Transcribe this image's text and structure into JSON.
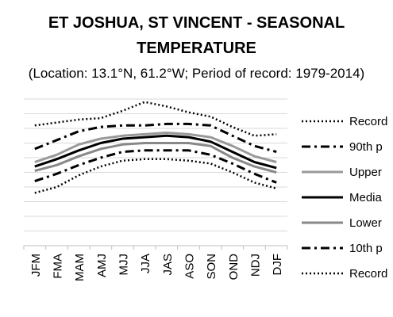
{
  "chart_data": {
    "type": "line",
    "title_line1": "ET JOSHUA, ST VINCENT - SEASONAL",
    "title_line2": "TEMPERATURE",
    "subtitle": "(Location: 13.1°N, 61.2°W; Period of record: 1979-2014)",
    "xlabel": "",
    "ylabel": "",
    "categories": [
      "JFM",
      "FMA",
      "MAM",
      "AMJ",
      "MJJ",
      "JJA",
      "JAS",
      "ASO",
      "SON",
      "OND",
      "NDJ",
      "DJF"
    ],
    "ylim": [
      0,
      10
    ],
    "grid": true,
    "legend_position": "right",
    "series": [
      {
        "name": "Record",
        "style": "dotted",
        "color": "#000000",
        "values": [
          8.2,
          8.4,
          8.6,
          8.7,
          9.2,
          9.8,
          9.5,
          9.1,
          8.8,
          8.1,
          7.5,
          7.6
        ]
      },
      {
        "name": "90th p",
        "style": "dashdot",
        "color": "#000000",
        "values": [
          6.6,
          7.2,
          7.8,
          8.1,
          8.2,
          8.2,
          8.3,
          8.3,
          8.2,
          7.5,
          6.8,
          6.4
        ]
      },
      {
        "name": "Upper",
        "style": "solid",
        "color": "#999999",
        "values": [
          5.7,
          6.2,
          6.9,
          7.3,
          7.5,
          7.6,
          7.7,
          7.6,
          7.4,
          6.8,
          6.1,
          5.7
        ]
      },
      {
        "name": "Media",
        "style": "solid",
        "color": "#000000",
        "values": [
          5.4,
          5.9,
          6.5,
          7.0,
          7.3,
          7.4,
          7.5,
          7.4,
          7.1,
          6.4,
          5.7,
          5.3
        ]
      },
      {
        "name": "Lower",
        "style": "solid",
        "color": "#888888",
        "values": [
          5.1,
          5.5,
          6.1,
          6.6,
          6.9,
          7.0,
          7.0,
          7.0,
          6.8,
          6.0,
          5.4,
          5.0
        ]
      },
      {
        "name": "10th p",
        "style": "dashdot",
        "color": "#000000",
        "values": [
          4.4,
          4.9,
          5.5,
          6.0,
          6.4,
          6.5,
          6.5,
          6.5,
          6.2,
          5.6,
          4.9,
          4.3
        ]
      },
      {
        "name": "Record",
        "style": "dotted",
        "color": "#000000",
        "values": [
          3.6,
          4.0,
          4.8,
          5.4,
          5.8,
          5.9,
          5.9,
          5.8,
          5.6,
          5.0,
          4.3,
          3.9
        ]
      }
    ]
  }
}
